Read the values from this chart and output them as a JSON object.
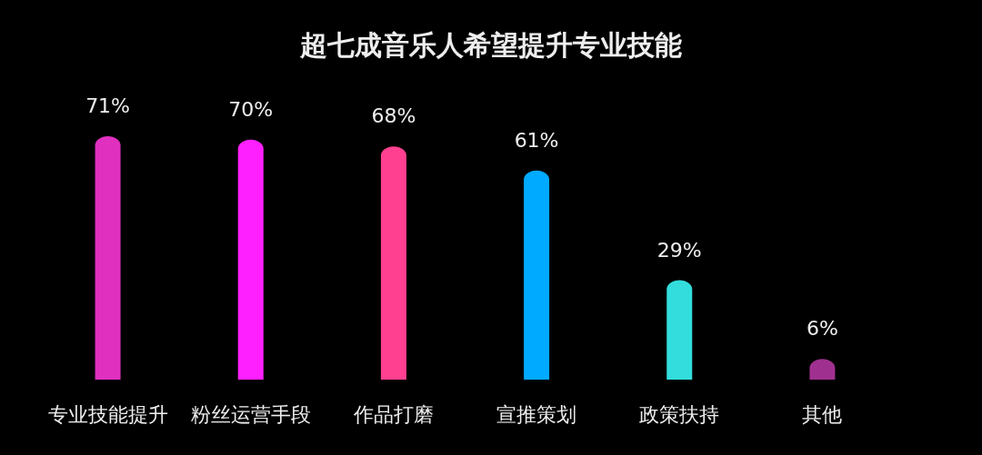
{
  "chart_data": {
    "type": "bar",
    "title": "超七成音乐人希望提升专业技能",
    "categories": [
      "专业技能提升",
      "粉丝运营手段",
      "作品打磨",
      "宣推策划",
      "政策扶持",
      "其他"
    ],
    "values": [
      71,
      70,
      68,
      61,
      29,
      6
    ],
    "value_labels": [
      "71%",
      "70%",
      "68%",
      "61%",
      "29%",
      "6%"
    ],
    "colors": [
      "#e030c0",
      "#ff20ff",
      "#ff4090",
      "#00aaff",
      "#33dddd",
      "#a03090"
    ]
  }
}
